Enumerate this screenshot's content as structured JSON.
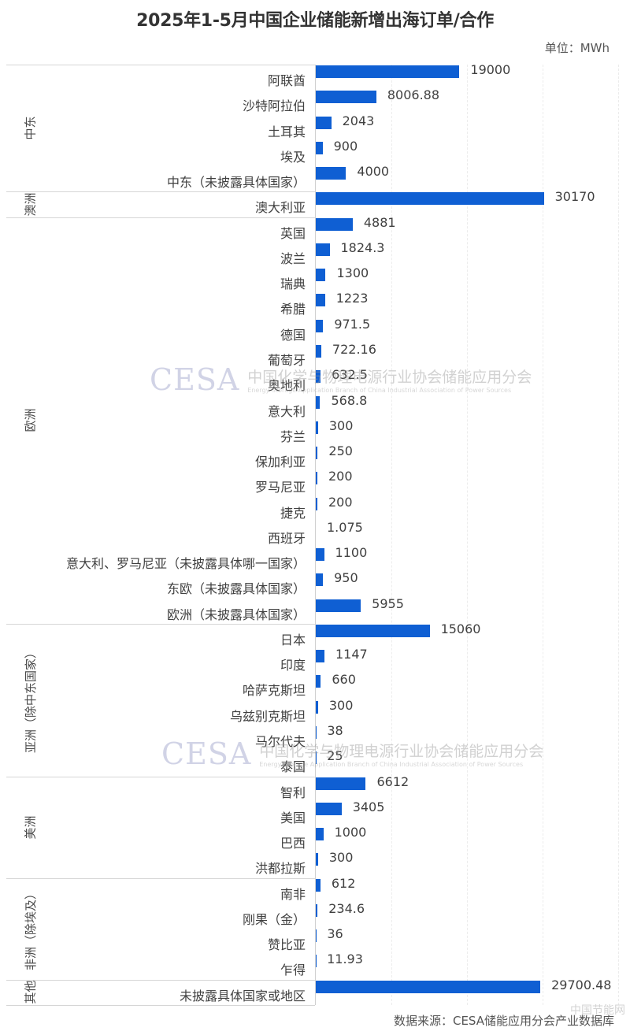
{
  "title": "2025年1-5月中国企业储能新增出海订单/合作",
  "unit": "单位：MWh",
  "source": "数据来源：CESA储能应用分会产业数据库",
  "corner_watermark": "中国节能网",
  "watermark": {
    "logo": "CESA",
    "cn": "中国化学与物理电源行业协会储能应用分会",
    "en": "Energy Storage Application Branch of China Industrial Association of Power Sources"
  },
  "colors": {
    "bar": "#0f5fd3",
    "grid": "#ececec",
    "separator": "#d6d6d6"
  },
  "chart_data": {
    "type": "bar",
    "orientation": "horizontal",
    "title": "2025年1-5月中国企业储能新增出海订单/合作",
    "xlabel": "",
    "ylabel": "",
    "unit": "MWh",
    "xlim": [
      0,
      40000
    ],
    "grid": true,
    "legend": "none",
    "groups": [
      {
        "name": "中东",
        "categories": [
          "阿联酋",
          "沙特阿拉伯",
          "土耳其",
          "埃及",
          "中东（未披露具体国家）"
        ],
        "values": [
          19000,
          8006.88,
          2043,
          900,
          4000
        ],
        "labels": [
          "19000",
          "8006.88",
          "2043",
          "900",
          "4000"
        ]
      },
      {
        "name": "澳洲",
        "categories": [
          "澳大利亚"
        ],
        "values": [
          30170
        ],
        "labels": [
          "30170"
        ]
      },
      {
        "name": "欧洲",
        "categories": [
          "英国",
          "波兰",
          "瑞典",
          "希腊",
          "德国",
          "葡萄牙",
          "奥地利",
          "意大利",
          "芬兰",
          "保加利亚",
          "罗马尼亚",
          "捷克",
          "西班牙",
          "意大利、罗马尼亚（未披露具体哪一国家）",
          "东欧（未披露具体国家）",
          "欧洲（未披露具体国家）"
        ],
        "values": [
          4881,
          1824.3,
          1300,
          1223,
          971.5,
          722.16,
          632.5,
          568.8,
          300,
          250,
          200,
          200,
          1.075,
          1100,
          950,
          5955
        ],
        "labels": [
          "4881",
          "1824.3",
          "1300",
          "1223",
          "971.5",
          "722.16",
          "632.5",
          "568.8",
          "300",
          "250",
          "200",
          "200",
          "1.075",
          "1100",
          "950",
          "5955"
        ]
      },
      {
        "name": "亚洲（除中东国家）",
        "categories": [
          "日本",
          "印度",
          "哈萨克斯坦",
          "乌兹别克斯坦",
          "马尔代夫",
          "泰国"
        ],
        "values": [
          15060,
          1147,
          660,
          300,
          38,
          25
        ],
        "labels": [
          "15060",
          "1147",
          "660",
          "300",
          "38",
          "25"
        ]
      },
      {
        "name": "美洲",
        "categories": [
          "智利",
          "美国",
          "巴西",
          "洪都拉斯"
        ],
        "values": [
          6612,
          3405,
          1000,
          300
        ],
        "labels": [
          "6612",
          "3405",
          "1000",
          "300"
        ]
      },
      {
        "name": "非洲（除埃及）",
        "categories": [
          "南非",
          "刚果（金）",
          "赞比亚",
          "乍得"
        ],
        "values": [
          612,
          234.6,
          36,
          11.93
        ],
        "labels": [
          "612",
          "234.6",
          "36",
          "11.93"
        ]
      },
      {
        "name": "其他",
        "categories": [
          "未披露具体国家或地区"
        ],
        "values": [
          29700.48
        ],
        "labels": [
          "29700.48"
        ]
      }
    ]
  }
}
